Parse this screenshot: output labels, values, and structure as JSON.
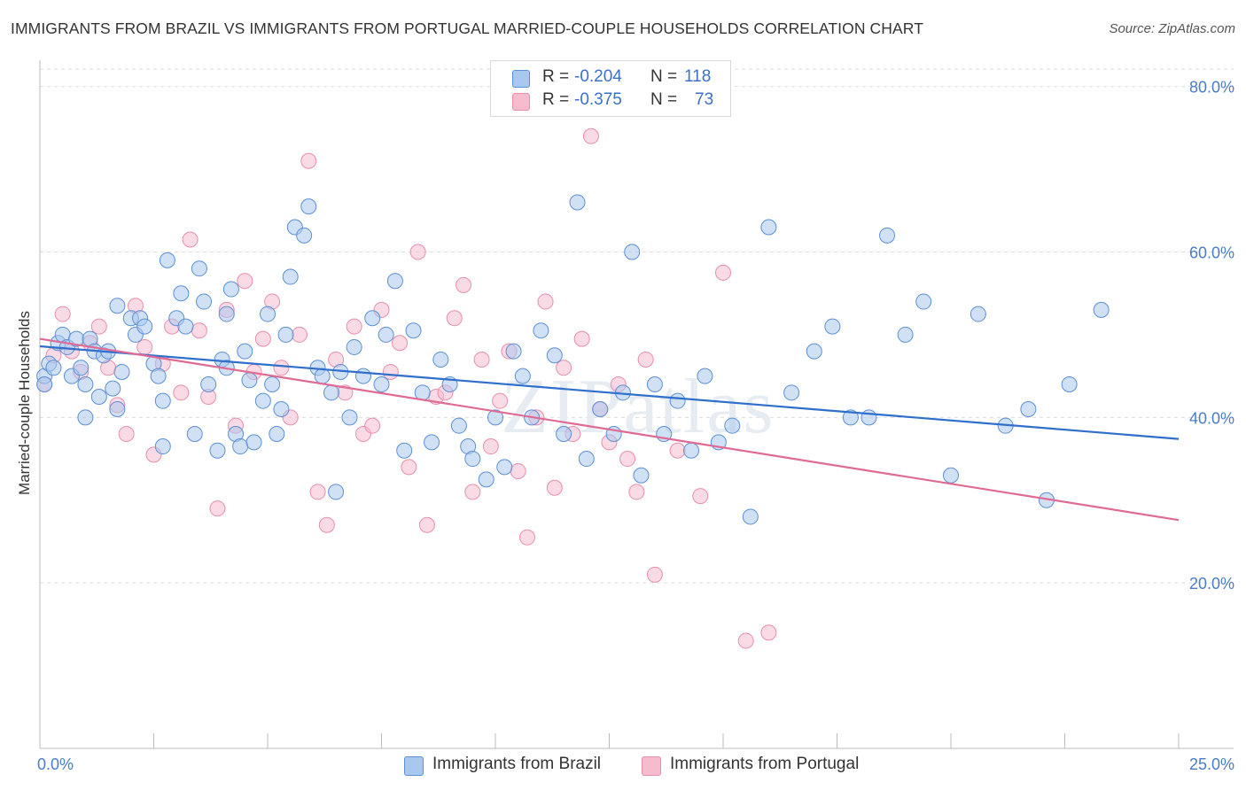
{
  "title": "IMMIGRANTS FROM BRAZIL VS IMMIGRANTS FROM PORTUGAL MARRIED-COUPLE HOUSEHOLDS CORRELATION CHART",
  "source": "Source: ZipAtlas.com",
  "watermark": "ZIPatlas",
  "legend": {
    "r_label": "R =",
    "n_label": "N =",
    "brazil": {
      "r": "-0.204",
      "n": "118"
    },
    "portugal": {
      "r": "-0.375",
      "n": "73"
    }
  },
  "bottom_legend": {
    "brazil": "Immigrants from Brazil",
    "portugal": "Immigrants from Portugal"
  },
  "colors": {
    "brazil_fill": "#a9c8ef",
    "brazil_stroke": "#5b8fd6",
    "brazil_line": "#2f6fcc",
    "portugal_fill": "#f6bccd",
    "portugal_stroke": "#e98fac",
    "portugal_line": "#e06a93",
    "grid": "#dddddd",
    "tick_text": "#4a7cc9"
  },
  "chart_data": {
    "type": "scatter",
    "title": "IMMIGRANTS FROM BRAZIL VS IMMIGRANTS FROM PORTUGAL MARRIED-COUPLE HOUSEHOLDS CORRELATION CHART",
    "xlabel": "",
    "ylabel": "Married-couple Households",
    "xlim": [
      0,
      25
    ],
    "ylim": [
      0,
      82
    ],
    "x_tick_labels": [
      "0.0%",
      "25.0%"
    ],
    "y_ticks": [
      20,
      40,
      60,
      80
    ],
    "y_tick_labels": [
      "20.0%",
      "40.0%",
      "60.0%",
      "80.0%"
    ],
    "trendlines": [
      {
        "name": "Immigrants from Brazil",
        "x": [
          0,
          25
        ],
        "y": [
          48.6,
          37.4
        ]
      },
      {
        "name": "Immigrants from Portugal",
        "x": [
          0,
          25
        ],
        "y": [
          49.5,
          27.6
        ]
      }
    ],
    "series": [
      {
        "name": "Immigrants from Brazil",
        "points": [
          [
            0.1,
            45
          ],
          [
            0.1,
            44
          ],
          [
            0.2,
            46.5
          ],
          [
            0.3,
            46
          ],
          [
            0.4,
            49
          ],
          [
            0.5,
            50
          ],
          [
            0.6,
            48.5
          ],
          [
            0.7,
            45
          ],
          [
            0.8,
            49.5
          ],
          [
            0.9,
            46
          ],
          [
            1.0,
            44
          ],
          [
            1.0,
            40
          ],
          [
            1.1,
            49.5
          ],
          [
            1.2,
            48
          ],
          [
            1.3,
            42.5
          ],
          [
            1.4,
            47.5
          ],
          [
            1.5,
            48
          ],
          [
            1.6,
            43.5
          ],
          [
            1.7,
            41
          ],
          [
            1.7,
            53.5
          ],
          [
            1.8,
            45.5
          ],
          [
            2.0,
            52
          ],
          [
            2.1,
            50
          ],
          [
            2.2,
            52
          ],
          [
            2.3,
            51
          ],
          [
            2.5,
            46.5
          ],
          [
            2.6,
            45
          ],
          [
            2.7,
            42
          ],
          [
            2.7,
            36.5
          ],
          [
            2.8,
            59
          ],
          [
            3.0,
            52
          ],
          [
            3.1,
            55
          ],
          [
            3.2,
            51
          ],
          [
            3.4,
            38
          ],
          [
            3.5,
            58
          ],
          [
            3.6,
            54
          ],
          [
            3.7,
            44
          ],
          [
            3.9,
            36
          ],
          [
            4.0,
            47
          ],
          [
            4.1,
            52.5
          ],
          [
            4.1,
            46
          ],
          [
            4.2,
            55.5
          ],
          [
            4.3,
            38
          ],
          [
            4.4,
            36.5
          ],
          [
            4.5,
            48
          ],
          [
            4.6,
            44.5
          ],
          [
            4.7,
            37
          ],
          [
            4.9,
            42
          ],
          [
            5.0,
            52.5
          ],
          [
            5.1,
            44
          ],
          [
            5.2,
            38
          ],
          [
            5.3,
            41
          ],
          [
            5.4,
            50
          ],
          [
            5.5,
            57
          ],
          [
            5.6,
            63
          ],
          [
            5.8,
            62
          ],
          [
            5.9,
            65.5
          ],
          [
            6.1,
            46
          ],
          [
            6.2,
            45
          ],
          [
            6.4,
            43
          ],
          [
            6.5,
            31
          ],
          [
            6.6,
            45.5
          ],
          [
            6.8,
            40
          ],
          [
            6.9,
            48.5
          ],
          [
            7.1,
            45
          ],
          [
            7.3,
            52
          ],
          [
            7.5,
            44
          ],
          [
            7.6,
            50
          ],
          [
            7.8,
            56.5
          ],
          [
            8.0,
            36
          ],
          [
            8.2,
            50.5
          ],
          [
            8.4,
            43
          ],
          [
            8.6,
            37
          ],
          [
            8.8,
            47
          ],
          [
            9.0,
            44
          ],
          [
            9.2,
            39
          ],
          [
            9.4,
            36.5
          ],
          [
            9.5,
            35
          ],
          [
            9.8,
            32.5
          ],
          [
            10.0,
            40
          ],
          [
            10.2,
            34
          ],
          [
            10.4,
            48
          ],
          [
            10.6,
            45
          ],
          [
            10.8,
            40
          ],
          [
            11.0,
            50.5
          ],
          [
            11.3,
            47.5
          ],
          [
            11.5,
            38
          ],
          [
            11.8,
            66
          ],
          [
            12.0,
            35
          ],
          [
            12.3,
            41
          ],
          [
            12.6,
            38
          ],
          [
            12.8,
            43
          ],
          [
            13.0,
            60
          ],
          [
            13.2,
            33
          ],
          [
            13.5,
            44
          ],
          [
            13.7,
            38
          ],
          [
            14.0,
            42
          ],
          [
            14.3,
            36
          ],
          [
            14.6,
            45
          ],
          [
            14.9,
            37
          ],
          [
            15.2,
            39
          ],
          [
            15.6,
            28
          ],
          [
            16.0,
            63
          ],
          [
            16.5,
            43
          ],
          [
            17.0,
            48
          ],
          [
            17.4,
            51
          ],
          [
            17.8,
            40
          ],
          [
            18.2,
            40
          ],
          [
            18.6,
            62
          ],
          [
            19.0,
            50
          ],
          [
            19.4,
            54
          ],
          [
            20.0,
            33
          ],
          [
            20.6,
            52.5
          ],
          [
            21.2,
            39
          ],
          [
            21.7,
            41
          ],
          [
            22.1,
            30
          ],
          [
            22.6,
            44
          ],
          [
            23.3,
            53
          ]
        ]
      },
      {
        "name": "Immigrants from Portugal",
        "points": [
          [
            0.1,
            44
          ],
          [
            0.3,
            47.5
          ],
          [
            0.5,
            52.5
          ],
          [
            0.7,
            48
          ],
          [
            0.9,
            45.5
          ],
          [
            1.1,
            49
          ],
          [
            1.3,
            51
          ],
          [
            1.5,
            46
          ],
          [
            1.7,
            41.5
          ],
          [
            1.9,
            38
          ],
          [
            2.1,
            53.5
          ],
          [
            2.3,
            48.5
          ],
          [
            2.5,
            35.5
          ],
          [
            2.7,
            46.5
          ],
          [
            2.9,
            51
          ],
          [
            3.1,
            43
          ],
          [
            3.3,
            61.5
          ],
          [
            3.5,
            50.5
          ],
          [
            3.7,
            42.5
          ],
          [
            3.9,
            29
          ],
          [
            4.1,
            53
          ],
          [
            4.3,
            39
          ],
          [
            4.5,
            56.5
          ],
          [
            4.7,
            45.5
          ],
          [
            4.9,
            49.5
          ],
          [
            5.1,
            54
          ],
          [
            5.3,
            46
          ],
          [
            5.5,
            40
          ],
          [
            5.7,
            50
          ],
          [
            5.9,
            71
          ],
          [
            6.1,
            31
          ],
          [
            6.3,
            27
          ],
          [
            6.5,
            47
          ],
          [
            6.7,
            43
          ],
          [
            6.9,
            51
          ],
          [
            7.1,
            38
          ],
          [
            7.3,
            39
          ],
          [
            7.5,
            53
          ],
          [
            7.7,
            45.5
          ],
          [
            7.9,
            49
          ],
          [
            8.1,
            34
          ],
          [
            8.3,
            60
          ],
          [
            8.5,
            27
          ],
          [
            8.7,
            42.5
          ],
          [
            8.9,
            43
          ],
          [
            9.1,
            52
          ],
          [
            9.3,
            56
          ],
          [
            9.5,
            31
          ],
          [
            9.7,
            47
          ],
          [
            9.9,
            36.5
          ],
          [
            10.1,
            42
          ],
          [
            10.3,
            48
          ],
          [
            10.5,
            33.5
          ],
          [
            10.7,
            25.5
          ],
          [
            10.9,
            40
          ],
          [
            11.1,
            54
          ],
          [
            11.3,
            31.5
          ],
          [
            11.5,
            46
          ],
          [
            11.7,
            38
          ],
          [
            11.9,
            49.5
          ],
          [
            12.1,
            74
          ],
          [
            12.3,
            41
          ],
          [
            12.5,
            37
          ],
          [
            12.7,
            44
          ],
          [
            12.9,
            35
          ],
          [
            13.1,
            31
          ],
          [
            13.3,
            47
          ],
          [
            13.5,
            21
          ],
          [
            14.0,
            36
          ],
          [
            14.5,
            30.5
          ],
          [
            15.0,
            57.5
          ],
          [
            15.5,
            13
          ],
          [
            16.0,
            14
          ]
        ]
      }
    ]
  }
}
